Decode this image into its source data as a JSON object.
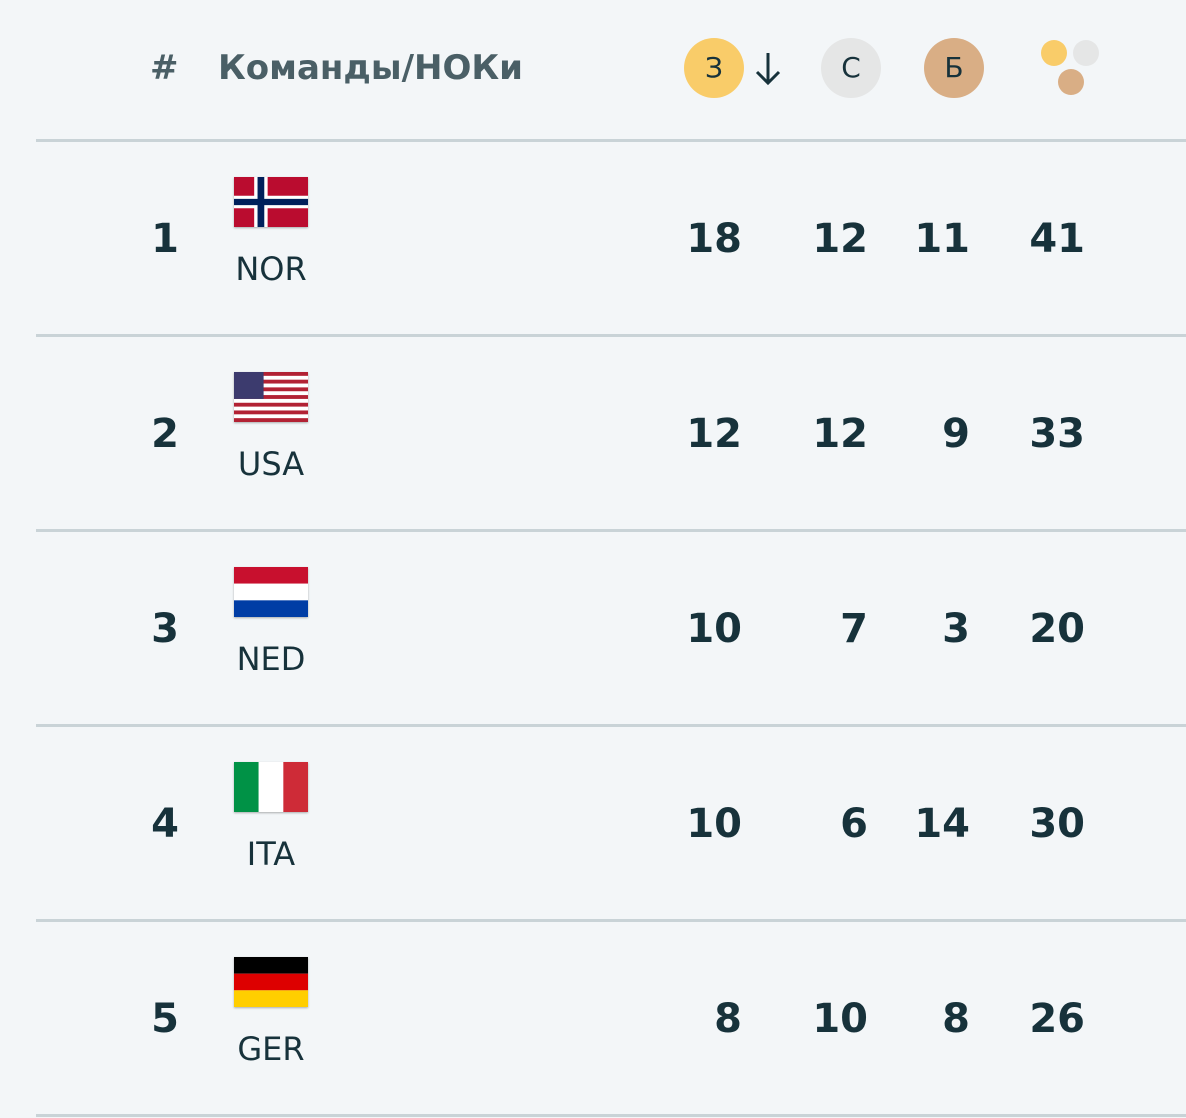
{
  "header": {
    "rank": "#",
    "team": "Команды/НОКи",
    "gold": "З",
    "silver": "С",
    "bronze": "Б"
  },
  "rows": [
    {
      "rank": "1",
      "code": "NOR",
      "gold": 18,
      "silver": 12,
      "bronze": 11,
      "total": 41
    },
    {
      "rank": "2",
      "code": "USA",
      "gold": 12,
      "silver": 12,
      "bronze": 9,
      "total": 33
    },
    {
      "rank": "3",
      "code": "NED",
      "gold": 10,
      "silver": 7,
      "bronze": 3,
      "total": 20
    },
    {
      "rank": "4",
      "code": "ITA",
      "gold": 10,
      "silver": 6,
      "bronze": 14,
      "total": 30
    },
    {
      "rank": "5",
      "code": "GER",
      "gold": 8,
      "silver": 10,
      "bronze": 8,
      "total": 26
    }
  ]
}
